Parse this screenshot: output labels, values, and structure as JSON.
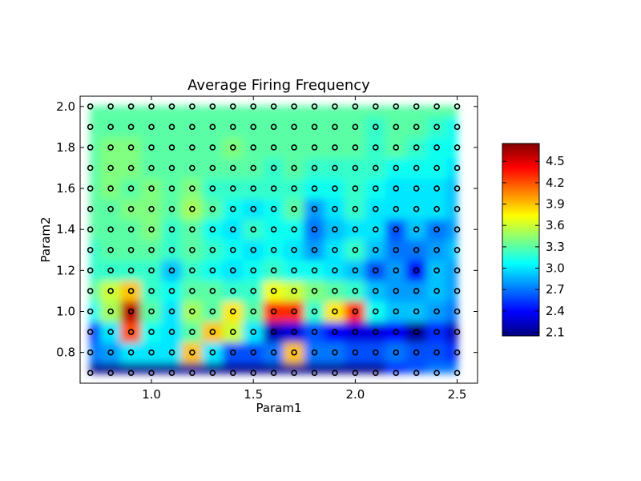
{
  "chart_data": {
    "type": "heatmap",
    "title": "Average Firing Frequency",
    "xlabel": "Param1",
    "ylabel": "Param2",
    "xlim": [
      0.65,
      2.6
    ],
    "ylim": [
      0.65,
      2.05
    ],
    "x": [
      0.7,
      0.8,
      0.9,
      1.0,
      1.1,
      1.2,
      1.3,
      1.4,
      1.5,
      1.6,
      1.7,
      1.8,
      1.9,
      2.0,
      2.1,
      2.2,
      2.3,
      2.4,
      2.5
    ],
    "y": [
      0.7,
      0.8,
      0.9,
      1.0,
      1.1,
      1.2,
      1.3,
      1.4,
      1.5,
      1.6,
      1.7,
      1.8,
      1.9,
      2.0
    ],
    "x_ticks": [
      1.0,
      1.5,
      2.0,
      2.5
    ],
    "x_tick_labels": [
      "1.0",
      "1.5",
      "2.0",
      "2.5"
    ],
    "y_ticks": [
      0.8,
      1.0,
      1.2,
      1.4,
      1.6,
      1.8,
      2.0
    ],
    "y_tick_labels": [
      "0.8",
      "1.0",
      "1.2",
      "1.4",
      "1.6",
      "1.8",
      "2.0"
    ],
    "values": [
      [
        2.1,
        2.1,
        2.1,
        2.1,
        2.1,
        2.1,
        2.1,
        2.1,
        2.1,
        2.1,
        2.1,
        2.1,
        2.1,
        2.1,
        2.1,
        2.5,
        2.6,
        2.7,
        2.7
      ],
      [
        2.7,
        2.8,
        3.0,
        3.0,
        3.0,
        3.9,
        3.0,
        2.6,
        2.6,
        2.7,
        3.9,
        2.7,
        2.7,
        2.6,
        2.6,
        2.7,
        2.6,
        2.6,
        2.5
      ],
      [
        2.5,
        3.0,
        4.2,
        3.1,
        3.0,
        3.3,
        3.9,
        3.6,
        3.0,
        2.2,
        2.3,
        2.6,
        2.4,
        2.3,
        2.3,
        2.4,
        2.1,
        2.5,
        2.2
      ],
      [
        3.1,
        3.5,
        4.6,
        3.3,
        3.0,
        3.5,
        3.3,
        3.8,
        3.3,
        4.3,
        4.3,
        3.2,
        3.8,
        4.3,
        3.1,
        2.9,
        2.9,
        2.8,
        2.7
      ],
      [
        3.3,
        3.6,
        3.9,
        3.2,
        3.1,
        3.3,
        3.3,
        3.2,
        3.2,
        3.7,
        3.6,
        3.4,
        3.3,
        3.2,
        2.9,
        2.8,
        2.8,
        2.9,
        2.8
      ],
      [
        3.2,
        3.2,
        3.2,
        3.2,
        2.9,
        3.2,
        3.1,
        3.0,
        3.1,
        3.2,
        3.1,
        3.1,
        3.0,
        2.9,
        2.6,
        2.8,
        2.4,
        2.9,
        2.8
      ],
      [
        3.2,
        3.3,
        3.3,
        3.3,
        3.2,
        3.3,
        3.2,
        3.1,
        3.0,
        3.1,
        3.0,
        2.8,
        3.0,
        3.2,
        2.9,
        2.7,
        2.7,
        2.8,
        2.9
      ],
      [
        3.3,
        3.3,
        3.3,
        3.4,
        3.2,
        3.3,
        3.1,
        3.0,
        3.2,
        3.1,
        3.1,
        2.7,
        2.9,
        3.0,
        3.0,
        2.6,
        2.9,
        2.7,
        2.8
      ],
      [
        3.3,
        3.3,
        3.4,
        3.4,
        3.3,
        3.5,
        3.3,
        3.1,
        3.0,
        3.1,
        3.3,
        2.8,
        3.0,
        3.2,
        3.0,
        3.0,
        3.0,
        3.0,
        2.9
      ],
      [
        3.3,
        3.4,
        3.3,
        3.4,
        3.3,
        3.4,
        3.2,
        3.2,
        3.2,
        3.2,
        3.2,
        3.1,
        3.1,
        3.2,
        3.1,
        3.0,
        3.0,
        3.0,
        2.9
      ],
      [
        3.3,
        3.4,
        3.4,
        3.3,
        3.3,
        3.3,
        3.3,
        3.3,
        3.3,
        3.2,
        3.3,
        3.2,
        3.2,
        3.2,
        3.2,
        3.1,
        3.1,
        3.1,
        3.0
      ],
      [
        3.3,
        3.4,
        3.4,
        3.3,
        3.3,
        3.3,
        3.3,
        3.4,
        3.3,
        3.3,
        3.3,
        3.3,
        3.3,
        3.3,
        3.2,
        3.3,
        3.2,
        3.1,
        3.1
      ],
      [
        3.3,
        3.3,
        3.3,
        3.3,
        3.3,
        3.3,
        3.3,
        3.3,
        3.3,
        3.3,
        3.3,
        3.3,
        3.3,
        3.3,
        3.2,
        3.3,
        3.3,
        3.2,
        3.1
      ],
      [
        3.3,
        3.3,
        3.3,
        3.3,
        3.3,
        3.3,
        3.3,
        3.3,
        3.3,
        3.3,
        3.3,
        3.3,
        3.3,
        3.3,
        3.3,
        3.3,
        3.3,
        3.3,
        3.3
      ]
    ],
    "colorbar": {
      "colormap": "jet",
      "range": [
        2.05,
        4.75
      ],
      "ticks": [
        2.1,
        2.4,
        2.7,
        3.0,
        3.3,
        3.6,
        3.9,
        4.2,
        4.5
      ],
      "tick_labels": [
        "2.1",
        "2.4",
        "2.7",
        "3.0",
        "3.3",
        "3.6",
        "3.9",
        "4.2",
        "4.5"
      ]
    },
    "markers": {
      "shape": "circle",
      "fill": "none",
      "edge_color": "#000000"
    },
    "grid": false,
    "legend": "none"
  }
}
